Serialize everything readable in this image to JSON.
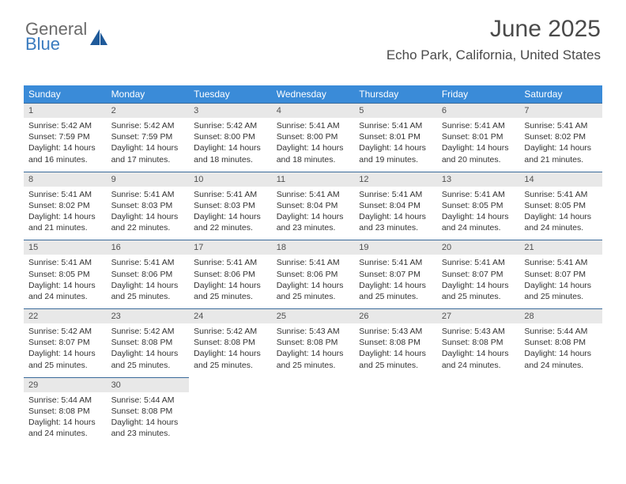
{
  "logo": {
    "word1": "General",
    "word2": "Blue",
    "icon_color": "#1f5a9a"
  },
  "header": {
    "month": "June 2025",
    "location": "Echo Park, California, United States",
    "text_color": "#4a4a4a"
  },
  "calendar": {
    "header_bg": "#3a8bd8",
    "header_fg": "#ffffff",
    "daynum_bg": "#e8e8e8",
    "daynum_border": "#3a6a9a",
    "body_fg": "#333333",
    "days_of_week": [
      "Sunday",
      "Monday",
      "Tuesday",
      "Wednesday",
      "Thursday",
      "Friday",
      "Saturday"
    ],
    "weeks": [
      [
        {
          "n": "1",
          "sr": "5:42 AM",
          "ss": "7:59 PM",
          "dl": "14 hours and 16 minutes."
        },
        {
          "n": "2",
          "sr": "5:42 AM",
          "ss": "7:59 PM",
          "dl": "14 hours and 17 minutes."
        },
        {
          "n": "3",
          "sr": "5:42 AM",
          "ss": "8:00 PM",
          "dl": "14 hours and 18 minutes."
        },
        {
          "n": "4",
          "sr": "5:41 AM",
          "ss": "8:00 PM",
          "dl": "14 hours and 18 minutes."
        },
        {
          "n": "5",
          "sr": "5:41 AM",
          "ss": "8:01 PM",
          "dl": "14 hours and 19 minutes."
        },
        {
          "n": "6",
          "sr": "5:41 AM",
          "ss": "8:01 PM",
          "dl": "14 hours and 20 minutes."
        },
        {
          "n": "7",
          "sr": "5:41 AM",
          "ss": "8:02 PM",
          "dl": "14 hours and 21 minutes."
        }
      ],
      [
        {
          "n": "8",
          "sr": "5:41 AM",
          "ss": "8:02 PM",
          "dl": "14 hours and 21 minutes."
        },
        {
          "n": "9",
          "sr": "5:41 AM",
          "ss": "8:03 PM",
          "dl": "14 hours and 22 minutes."
        },
        {
          "n": "10",
          "sr": "5:41 AM",
          "ss": "8:03 PM",
          "dl": "14 hours and 22 minutes."
        },
        {
          "n": "11",
          "sr": "5:41 AM",
          "ss": "8:04 PM",
          "dl": "14 hours and 23 minutes."
        },
        {
          "n": "12",
          "sr": "5:41 AM",
          "ss": "8:04 PM",
          "dl": "14 hours and 23 minutes."
        },
        {
          "n": "13",
          "sr": "5:41 AM",
          "ss": "8:05 PM",
          "dl": "14 hours and 24 minutes."
        },
        {
          "n": "14",
          "sr": "5:41 AM",
          "ss": "8:05 PM",
          "dl": "14 hours and 24 minutes."
        }
      ],
      [
        {
          "n": "15",
          "sr": "5:41 AM",
          "ss": "8:05 PM",
          "dl": "14 hours and 24 minutes."
        },
        {
          "n": "16",
          "sr": "5:41 AM",
          "ss": "8:06 PM",
          "dl": "14 hours and 25 minutes."
        },
        {
          "n": "17",
          "sr": "5:41 AM",
          "ss": "8:06 PM",
          "dl": "14 hours and 25 minutes."
        },
        {
          "n": "18",
          "sr": "5:41 AM",
          "ss": "8:06 PM",
          "dl": "14 hours and 25 minutes."
        },
        {
          "n": "19",
          "sr": "5:41 AM",
          "ss": "8:07 PM",
          "dl": "14 hours and 25 minutes."
        },
        {
          "n": "20",
          "sr": "5:41 AM",
          "ss": "8:07 PM",
          "dl": "14 hours and 25 minutes."
        },
        {
          "n": "21",
          "sr": "5:41 AM",
          "ss": "8:07 PM",
          "dl": "14 hours and 25 minutes."
        }
      ],
      [
        {
          "n": "22",
          "sr": "5:42 AM",
          "ss": "8:07 PM",
          "dl": "14 hours and 25 minutes."
        },
        {
          "n": "23",
          "sr": "5:42 AM",
          "ss": "8:08 PM",
          "dl": "14 hours and 25 minutes."
        },
        {
          "n": "24",
          "sr": "5:42 AM",
          "ss": "8:08 PM",
          "dl": "14 hours and 25 minutes."
        },
        {
          "n": "25",
          "sr": "5:43 AM",
          "ss": "8:08 PM",
          "dl": "14 hours and 25 minutes."
        },
        {
          "n": "26",
          "sr": "5:43 AM",
          "ss": "8:08 PM",
          "dl": "14 hours and 25 minutes."
        },
        {
          "n": "27",
          "sr": "5:43 AM",
          "ss": "8:08 PM",
          "dl": "14 hours and 24 minutes."
        },
        {
          "n": "28",
          "sr": "5:44 AM",
          "ss": "8:08 PM",
          "dl": "14 hours and 24 minutes."
        }
      ],
      [
        {
          "n": "29",
          "sr": "5:44 AM",
          "ss": "8:08 PM",
          "dl": "14 hours and 24 minutes."
        },
        {
          "n": "30",
          "sr": "5:44 AM",
          "ss": "8:08 PM",
          "dl": "14 hours and 23 minutes."
        },
        null,
        null,
        null,
        null,
        null
      ]
    ],
    "labels": {
      "sunrise": "Sunrise:",
      "sunset": "Sunset:",
      "daylight": "Daylight:"
    }
  }
}
